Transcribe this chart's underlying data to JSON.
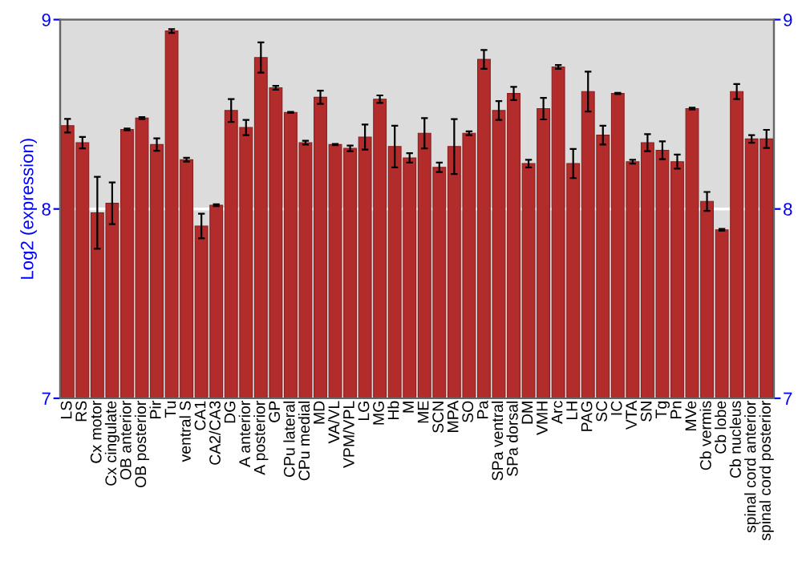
{
  "chart_data": {
    "type": "bar",
    "ylabel": "Log2 (expression)",
    "categories": [
      "LS",
      "RS",
      "Cx motor",
      "Cx cingulate",
      "OB anterior",
      "OB posterior",
      "Pir",
      "Tu",
      "ventral S",
      "CA1",
      "CA2/CA3",
      "DG",
      "A anterior",
      "A posterior",
      "GP",
      "CPu lateral",
      "CPu medial",
      "MD",
      "VA/VL",
      "VPM/VPL",
      "LG",
      "MG",
      "Hb",
      "M",
      "ME",
      "SCN",
      "MPA",
      "SO",
      "Pa",
      "SPa ventral",
      "SPa dorsal",
      "DM",
      "VMH",
      "Arc",
      "LH",
      "PAG",
      "SC",
      "IC",
      "VTA",
      "SN",
      "Tg",
      "Pn",
      "MVe",
      "Cb vermis",
      "Cb lobe",
      "Cb nucleus",
      "spinal cord anterior",
      "spinal cord posterior"
    ],
    "values": [
      8.44,
      8.35,
      7.98,
      8.03,
      8.42,
      8.48,
      8.34,
      8.94,
      8.26,
      7.91,
      8.02,
      8.52,
      8.43,
      8.8,
      8.64,
      8.51,
      8.35,
      8.59,
      8.34,
      8.32,
      8.38,
      8.58,
      8.33,
      8.27,
      8.4,
      8.22,
      8.33,
      8.4,
      8.79,
      8.52,
      8.61,
      8.24,
      8.53,
      8.75,
      8.24,
      8.62,
      8.39,
      8.61,
      8.25,
      8.35,
      8.31,
      8.25,
      8.53,
      8.04,
      7.89,
      8.62,
      8.37,
      8.37
    ],
    "errors": [
      0.036,
      0.03,
      0.19,
      0.11,
      0.005,
      0.005,
      0.033,
      0.01,
      0.01,
      0.065,
      0.005,
      0.06,
      0.04,
      0.08,
      0.01,
      0.003,
      0.01,
      0.035,
      0.003,
      0.015,
      0.066,
      0.02,
      0.11,
      0.025,
      0.08,
      0.025,
      0.145,
      0.01,
      0.05,
      0.05,
      0.035,
      0.02,
      0.057,
      0.01,
      0.077,
      0.105,
      0.05,
      0.003,
      0.01,
      0.045,
      0.047,
      0.037,
      0.005,
      0.05,
      0.005,
      0.04,
      0.02,
      0.048
    ],
    "color": "#b22c2c",
    "ylim": [
      7,
      9
    ],
    "yticks": [
      7,
      8,
      9
    ],
    "y2lim": [
      7,
      9
    ],
    "y2ticks": [
      7,
      8,
      9
    ],
    "grid": "y"
  }
}
